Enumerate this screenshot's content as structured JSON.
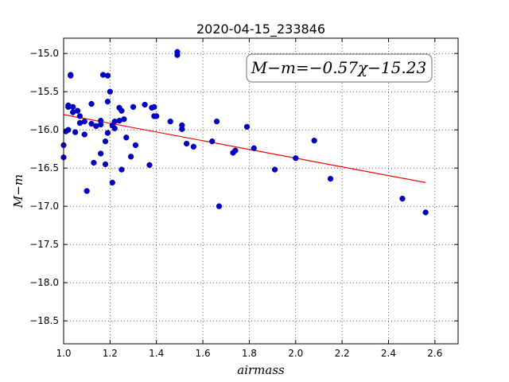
{
  "chart_data": {
    "type": "scatter",
    "title": "2020-04-15_233846",
    "xlabel": "airmass",
    "ylabel": "M−m",
    "annotation": "M−m=−0.57χ−15.23",
    "xlim": [
      1.0,
      2.7
    ],
    "ylim": [
      -18.8,
      -14.8
    ],
    "y_inverted": false,
    "grid": true,
    "xticks": [
      "1.0",
      "1.2",
      "1.4",
      "1.6",
      "1.8",
      "2.0",
      "2.2",
      "2.4",
      "2.6"
    ],
    "xtick_values": [
      1.0,
      1.2,
      1.4,
      1.6,
      1.8,
      2.0,
      2.2,
      2.4,
      2.6
    ],
    "yticks": [
      "−15.0",
      "−15.5",
      "−16.0",
      "−16.5",
      "−17.0",
      "−17.5",
      "−18.0",
      "−18.5"
    ],
    "ytick_values": [
      -15.0,
      -15.5,
      -16.0,
      -16.5,
      -17.0,
      -17.5,
      -18.0,
      -18.5
    ],
    "fit": {
      "slope": -0.57,
      "intercept": -15.23,
      "x_range": [
        1.0,
        2.56
      ],
      "color": "#ff0000"
    },
    "point_color": "#0000cc",
    "points": [
      [
        1.0,
        -16.2
      ],
      [
        1.0,
        -16.36
      ],
      [
        1.01,
        -16.02
      ],
      [
        1.02,
        -15.7
      ],
      [
        1.02,
        -16.0
      ],
      [
        1.02,
        -15.68
      ],
      [
        1.03,
        -15.28
      ],
      [
        1.03,
        -15.29
      ],
      [
        1.04,
        -15.77
      ],
      [
        1.04,
        -15.7
      ],
      [
        1.05,
        -16.03
      ],
      [
        1.06,
        -15.75
      ],
      [
        1.07,
        -15.82
      ],
      [
        1.07,
        -15.91
      ],
      [
        1.09,
        -15.89
      ],
      [
        1.09,
        -16.06
      ],
      [
        1.1,
        -16.8
      ],
      [
        1.12,
        -15.66
      ],
      [
        1.12,
        -15.92
      ],
      [
        1.13,
        -16.43
      ],
      [
        1.14,
        -15.95
      ],
      [
        1.16,
        -15.88
      ],
      [
        1.16,
        -15.93
      ],
      [
        1.16,
        -16.31
      ],
      [
        1.17,
        -15.28
      ],
      [
        1.18,
        -16.15
      ],
      [
        1.18,
        -16.45
      ],
      [
        1.19,
        -15.63
      ],
      [
        1.19,
        -16.04
      ],
      [
        1.19,
        -15.29
      ],
      [
        1.2,
        -15.5
      ],
      [
        1.21,
        -15.94
      ],
      [
        1.21,
        -16.69
      ],
      [
        1.22,
        -15.89
      ],
      [
        1.22,
        -15.98
      ],
      [
        1.24,
        -15.71
      ],
      [
        1.24,
        -15.88
      ],
      [
        1.25,
        -15.75
      ],
      [
        1.25,
        -16.52
      ],
      [
        1.26,
        -15.86
      ],
      [
        1.27,
        -16.1
      ],
      [
        1.29,
        -16.35
      ],
      [
        1.3,
        -15.7
      ],
      [
        1.31,
        -16.2
      ],
      [
        1.35,
        -15.67
      ],
      [
        1.37,
        -16.46
      ],
      [
        1.38,
        -15.71
      ],
      [
        1.39,
        -15.82
      ],
      [
        1.39,
        -15.7
      ],
      [
        1.4,
        -15.82
      ],
      [
        1.46,
        -15.89
      ],
      [
        1.49,
        -14.98
      ],
      [
        1.49,
        -15.02
      ],
      [
        1.51,
        -15.94
      ],
      [
        1.51,
        -15.99
      ],
      [
        1.53,
        -16.18
      ],
      [
        1.56,
        -16.22
      ],
      [
        1.64,
        -16.15
      ],
      [
        1.66,
        -15.89
      ],
      [
        1.67,
        -17.0
      ],
      [
        1.73,
        -16.3
      ],
      [
        1.74,
        -16.27
      ],
      [
        1.79,
        -15.96
      ],
      [
        1.82,
        -16.24
      ],
      [
        1.91,
        -16.52
      ],
      [
        2.0,
        -16.37
      ],
      [
        2.08,
        -16.14
      ],
      [
        2.15,
        -16.64
      ],
      [
        2.46,
        -16.9
      ],
      [
        2.56,
        -17.08
      ]
    ]
  }
}
